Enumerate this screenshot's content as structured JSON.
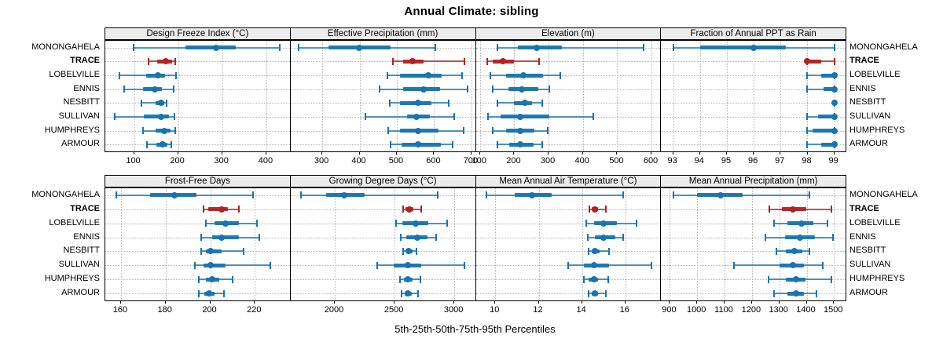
{
  "title": "Annual Climate: sibling",
  "caption": "5th-25th-50th-75th-95th Percentiles",
  "colors": {
    "series": "#1774B0",
    "highlight": "#B22222",
    "grid": "#B4B4B4",
    "strip_bg": "#ECECEC",
    "border": "#000000"
  },
  "chart_data": {
    "type": "dotplot",
    "layout": "2 rows x 4 columns trellis, percentile range plots",
    "legend_position": "none",
    "grid": "dotted",
    "locations": [
      "MONONGAHELA",
      "TRACE",
      "LOBELVILLE",
      "ENNIS",
      "NESBITT",
      "SULLIVAN",
      "HUMPHREYS",
      "ARMOUR"
    ],
    "highlight": "TRACE",
    "percentiles": [
      "5th",
      "25th",
      "50th",
      "75th",
      "95th"
    ],
    "panels": [
      {
        "title": "Design Freeze Index (°C)",
        "ticks": [
          100,
          200,
          300,
          400
        ],
        "xlim": [
          35,
          455
        ],
        "series": [
          {
            "name": "MONONGAHELA",
            "values": [
              99,
              216,
              286,
              330,
              431
            ]
          },
          {
            "name": "TRACE",
            "values": [
              133,
              152,
              172,
              186,
              193
            ]
          },
          {
            "name": "LOBELVILLE",
            "values": [
              67,
              128,
              154,
              170,
              196
            ]
          },
          {
            "name": "ENNIS",
            "values": [
              78,
              120,
              148,
              163,
              190
            ]
          },
          {
            "name": "NESBITT",
            "values": [
              117,
              149,
              161,
              169,
              174
            ]
          },
          {
            "name": "SULLIVAN",
            "values": [
              57,
              122,
              162,
              180,
              191
            ]
          },
          {
            "name": "HUMPHREYS",
            "values": [
              121,
              149,
              168,
              183,
              194
            ]
          },
          {
            "name": "ARMOUR",
            "values": [
              130,
              151,
              165,
              176,
              185
            ]
          }
        ]
      },
      {
        "title": "Effective Precipitation (mm)",
        "ticks": [
          300,
          400,
          500,
          600,
          700
        ],
        "xlim": [
          215,
          712
        ],
        "series": [
          {
            "name": "MONONGAHELA",
            "values": [
              236,
              316,
              398,
              483,
              603
            ]
          },
          {
            "name": "TRACE",
            "values": [
              490,
              516,
              543,
              572,
              681
            ]
          },
          {
            "name": "LOBELVILLE",
            "values": [
              475,
              509,
              584,
              620,
              675
            ]
          },
          {
            "name": "ENNIS",
            "values": [
              454,
              517,
              571,
              615,
              690
            ]
          },
          {
            "name": "NESBITT",
            "values": [
              482,
              509,
              558,
              592,
              640
            ]
          },
          {
            "name": "SULLIVAN",
            "values": [
              416,
              527,
              552,
              589,
              654
            ]
          },
          {
            "name": "HUMPHREYS",
            "values": [
              476,
              509,
              558,
              611,
              680
            ]
          },
          {
            "name": "ARMOUR",
            "values": [
              483,
              512,
              558,
              618,
              649
            ]
          }
        ]
      },
      {
        "title": "Elevation (m)",
        "ticks": [
          100,
          200,
          300,
          400,
          500,
          600
        ],
        "xlim": [
          88,
          628
        ],
        "series": [
          {
            "name": "MONONGAHELA",
            "values": [
              150,
              210,
              265,
              338,
              577
            ]
          },
          {
            "name": "TRACE",
            "values": [
              122,
              138,
              166,
              200,
              273
            ]
          },
          {
            "name": "LOBELVILLE",
            "values": [
              131,
              177,
              226,
              284,
              335
            ]
          },
          {
            "name": "ENNIS",
            "values": [
              136,
              182,
              221,
              269,
              301
            ]
          },
          {
            "name": "NESBITT",
            "values": [
              152,
              198,
              232,
              252,
              281
            ]
          },
          {
            "name": "SULLIVAN",
            "values": [
              124,
              160,
              217,
              302,
              431
            ]
          },
          {
            "name": "HUMPHREYS",
            "values": [
              136,
              175,
              218,
              258,
              297
            ]
          },
          {
            "name": "ARMOUR",
            "values": [
              150,
              186,
              218,
              256,
              282
            ]
          }
        ]
      },
      {
        "title": "Fraction of Annual PPT as Rain",
        "ticks": [
          93,
          94,
          95,
          96,
          97,
          98,
          99
        ],
        "xlim": [
          92.55,
          99.45
        ],
        "series": [
          {
            "name": "MONONGAHELA",
            "values": [
              93.0,
              94.0,
              96.0,
              97.2,
              99.0
            ]
          },
          {
            "name": "TRACE",
            "values": [
              98.0,
              98.0,
              98.0,
              98.5,
              99.0
            ]
          },
          {
            "name": "LOBELVILLE",
            "values": [
              98.0,
              98.5,
              99.0,
              99.0,
              99.0
            ]
          },
          {
            "name": "ENNIS",
            "values": [
              98.0,
              98.6,
              99.0,
              99.0,
              99.0
            ]
          },
          {
            "name": "NESBITT",
            "values": [
              99.0,
              99.0,
              99.0,
              99.0,
              99.0
            ]
          },
          {
            "name": "SULLIVAN",
            "values": [
              98.0,
              98.4,
              99.0,
              99.0,
              99.0
            ]
          },
          {
            "name": "HUMPHREYS",
            "values": [
              98.0,
              98.2,
              99.0,
              99.0,
              99.0
            ]
          },
          {
            "name": "ARMOUR",
            "values": [
              98.0,
              98.5,
              99.0,
              99.0,
              99.0
            ]
          }
        ]
      },
      {
        "title": "Frost-Free Days",
        "ticks": [
          160,
          180,
          200,
          220
        ],
        "xlim": [
          153,
          236
        ],
        "series": [
          {
            "name": "MONONGAHELA",
            "values": [
              158,
              173,
              184,
              194,
              219
            ]
          },
          {
            "name": "TRACE",
            "values": [
              197,
              199,
              205,
              208,
              213
            ]
          },
          {
            "name": "LOBELVILLE",
            "values": [
              198,
              202,
              207,
              213,
              221
            ]
          },
          {
            "name": "ENNIS",
            "values": [
              196,
              201,
              205,
              213,
              222
            ]
          },
          {
            "name": "NESBITT",
            "values": [
              196,
              198,
              200,
              205,
              215
            ]
          },
          {
            "name": "SULLIVAN",
            "values": [
              193,
              197,
              200,
              207,
              227
            ]
          },
          {
            "name": "HUMPHREYS",
            "values": [
              195,
              198,
              201,
              204,
              210
            ]
          },
          {
            "name": "ARMOUR",
            "values": [
              195,
              197.5,
              199.5,
              202,
              206
            ]
          }
        ]
      },
      {
        "title": "Growing Degree Days (°C)",
        "ticks": [
          2000,
          2500,
          3000
        ],
        "xlim": [
          1630,
          3180
        ],
        "series": [
          {
            "name": "MONONGAHELA",
            "values": [
              1720,
              1925,
              2080,
              2250,
              2860
            ]
          },
          {
            "name": "TRACE",
            "values": [
              2570,
              2592,
              2625,
              2655,
              2722
            ]
          },
          {
            "name": "LOBELVILLE",
            "values": [
              2515,
              2565,
              2680,
              2785,
              2940
            ]
          },
          {
            "name": "ENNIS",
            "values": [
              2550,
              2600,
              2690,
              2775,
              2845
            ]
          },
          {
            "name": "NESBITT",
            "values": [
              2574,
              2596,
              2618,
              2650,
              2686
            ]
          },
          {
            "name": "SULLIVAN",
            "values": [
              2352,
              2495,
              2610,
              2725,
              3085
            ]
          },
          {
            "name": "HUMPHREYS",
            "values": [
              2543,
              2576,
              2610,
              2650,
              2715
            ]
          },
          {
            "name": "ARMOUR",
            "values": [
              2560,
              2586,
              2612,
              2646,
              2694
            ]
          }
        ]
      },
      {
        "title": "Mean Annual Air Temperature (°C)",
        "ticks": [
          10,
          12,
          14,
          16
        ],
        "xlim": [
          9.1,
          17.65
        ],
        "series": [
          {
            "name": "MONONGAHELA",
            "values": [
              9.6,
              10.9,
              11.7,
              12.6,
              15.9
            ]
          },
          {
            "name": "TRACE",
            "values": [
              14.35,
              14.45,
              14.6,
              14.75,
              15.1
            ]
          },
          {
            "name": "LOBELVILLE",
            "values": [
              14.2,
              14.55,
              15.0,
              15.6,
              16.5
            ]
          },
          {
            "name": "ENNIS",
            "values": [
              14.25,
              14.6,
              15.0,
              15.55,
              15.9
            ]
          },
          {
            "name": "NESBITT",
            "values": [
              14.3,
              14.45,
              14.6,
              14.8,
              15.25
            ]
          },
          {
            "name": "SULLIVAN",
            "values": [
              13.35,
              14.1,
              14.55,
              15.25,
              17.2
            ]
          },
          {
            "name": "HUMPHREYS",
            "values": [
              14.1,
              14.3,
              14.55,
              14.75,
              15.2
            ]
          },
          {
            "name": "ARMOUR",
            "values": [
              14.3,
              14.45,
              14.6,
              14.75,
              15.1
            ]
          }
        ]
      },
      {
        "title": "Mean Annual Precipitation (mm)",
        "ticks": [
          900,
          1000,
          1100,
          1200,
          1300,
          1400,
          1500
        ],
        "xlim": [
          868,
          1545
        ],
        "series": [
          {
            "name": "MONONGAHELA",
            "values": [
              912,
              1000,
              1085,
              1165,
              1410
            ]
          },
          {
            "name": "TRACE",
            "values": [
              1265,
              1310,
              1350,
              1400,
              1490
            ]
          },
          {
            "name": "LOBELVILLE",
            "values": [
              1280,
              1330,
              1380,
              1425,
              1475
            ]
          },
          {
            "name": "ENNIS",
            "values": [
              1250,
              1320,
              1375,
              1430,
              1495
            ]
          },
          {
            "name": "NESBITT",
            "values": [
              1290,
              1325,
              1355,
              1385,
              1410
            ]
          },
          {
            "name": "SULLIVAN",
            "values": [
              1135,
              1300,
              1350,
              1390,
              1460
            ]
          },
          {
            "name": "HUMPHREYS",
            "values": [
              1260,
              1325,
              1360,
              1395,
              1490
            ]
          },
          {
            "name": "ARMOUR",
            "values": [
              1280,
              1330,
              1360,
              1390,
              1435
            ]
          }
        ]
      }
    ]
  }
}
